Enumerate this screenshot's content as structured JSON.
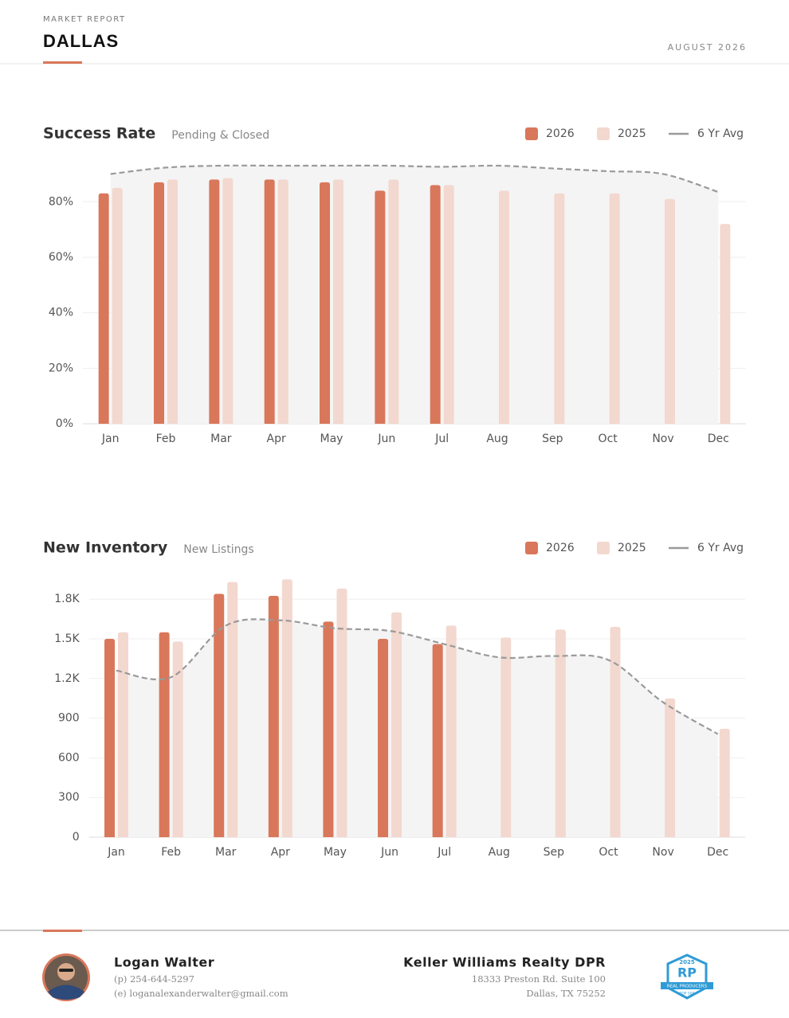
{
  "header": {
    "kicker": "MARKET REPORT",
    "city": "DALLAS",
    "date": "AUGUST 2026"
  },
  "chart_data": [
    {
      "type": "bar",
      "title": "Success Rate",
      "subtitle": "Pending & Closed",
      "categories": [
        "Jan",
        "Feb",
        "Mar",
        "Apr",
        "May",
        "Jun",
        "Jul",
        "Aug",
        "Sep",
        "Oct",
        "Nov",
        "Dec"
      ],
      "ylim": [
        0,
        95
      ],
      "yticks": [
        {
          "value": 0,
          "label": "0%"
        },
        {
          "value": 20,
          "label": "20%"
        },
        {
          "value": 40,
          "label": "40%"
        },
        {
          "value": 60,
          "label": "60%"
        },
        {
          "value": 80,
          "label": "80%"
        }
      ],
      "grid": true,
      "series": [
        {
          "name": "2026",
          "type": "bar",
          "color": "#d9775a",
          "values": [
            83,
            87,
            88,
            88,
            87,
            84,
            86,
            null,
            null,
            null,
            null,
            null
          ]
        },
        {
          "name": "2025",
          "type": "bar",
          "color": "#f3d8cf",
          "values": [
            85,
            88,
            88.5,
            88,
            88,
            88,
            86,
            84,
            83,
            83,
            81,
            72
          ]
        },
        {
          "name": "6 Yr Avg",
          "type": "line",
          "color": "#9a9a9a",
          "values": [
            90,
            92.3,
            93,
            93,
            93,
            93,
            92.6,
            93,
            92,
            91,
            90,
            83.5
          ]
        }
      ]
    },
    {
      "type": "bar",
      "title": "New Inventory",
      "subtitle": "New Listings",
      "categories": [
        "Jan",
        "Feb",
        "Mar",
        "Apr",
        "May",
        "Jun",
        "Jul",
        "Aug",
        "Sep",
        "Oct",
        "Nov",
        "Dec"
      ],
      "ylim": [
        0,
        2000
      ],
      "yticks": [
        0,
        300,
        600,
        900,
        {
          "value": 1200,
          "label": "1.2K"
        },
        {
          "value": 1500,
          "label": "1.5K"
        },
        {
          "value": 1800,
          "label": "1.8K"
        }
      ],
      "grid": true,
      "series": [
        {
          "name": "2026",
          "type": "bar",
          "color": "#d9775a",
          "values": [
            1500,
            1550,
            1840,
            1825,
            1630,
            1500,
            1460,
            null,
            null,
            null,
            null,
            null
          ]
        },
        {
          "name": "2025",
          "type": "bar",
          "color": "#f3d8cf",
          "values": [
            1550,
            1480,
            1930,
            1950,
            1880,
            1700,
            1600,
            1510,
            1570,
            1590,
            1050,
            820
          ]
        },
        {
          "name": "6 Yr Avg",
          "type": "line",
          "color": "#9a9a9a",
          "values": [
            1260,
            1210,
            1600,
            1640,
            1580,
            1560,
            1460,
            1360,
            1370,
            1340,
            1020,
            780
          ]
        }
      ]
    }
  ],
  "footer": {
    "agent": "Logan Walter",
    "phone": "(p) 254-644-5297",
    "email": "(e) loganalexanderwalter@gmail.com",
    "company": "Keller Williams Realty DPR",
    "address1": "18333 Preston Rd. Suite 100",
    "address2": "Dallas, TX 75252",
    "badge": {
      "year": "2025",
      "mark": "RP",
      "line1": "REAL PRODUCERS",
      "line2": "TOP 500"
    }
  }
}
